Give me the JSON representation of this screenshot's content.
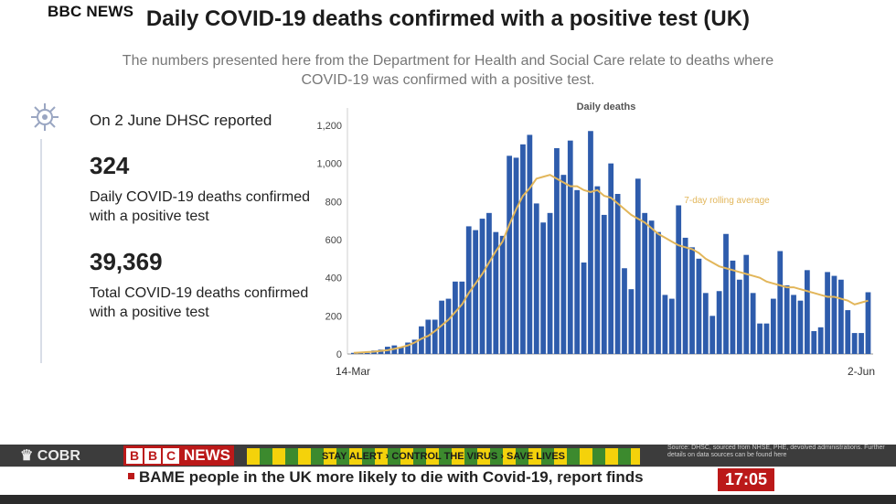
{
  "overlay": {
    "channel": "BBC NEWS"
  },
  "slide": {
    "title": "Daily COVID-19 deaths confirmed with a positive test (UK)",
    "subtitle": "The numbers presented here from the Department for Health and Social Care relate to deaths where COVID-19 was confirmed with a positive test.",
    "reported_label": "On 2 June DHSC reported",
    "daily_value": "324",
    "daily_label": "Daily COVID-19 deaths confirmed with a positive test",
    "total_value": "39,369",
    "total_label": "Total COVID-19 deaths confirmed with a positive test"
  },
  "chart_data": {
    "type": "bar",
    "title": "Daily deaths",
    "xlabel": "",
    "ylabel": "",
    "ylim": [
      0,
      1200
    ],
    "yticks": [
      0,
      200,
      400,
      600,
      800,
      "1,000",
      "1,200"
    ],
    "x_start_label": "14-Mar",
    "x_end_label": "2-Jun",
    "bar_color": "#2e5cac",
    "line_color": "#e2b65a",
    "line_label": "7-day rolling average",
    "values": [
      6,
      12,
      6,
      18,
      23,
      38,
      45,
      36,
      60,
      75,
      145,
      180,
      180,
      280,
      290,
      380,
      380,
      670,
      650,
      710,
      740,
      640,
      620,
      1040,
      1030,
      1100,
      1150,
      790,
      690,
      740,
      1080,
      940,
      1120,
      860,
      480,
      1170,
      880,
      730,
      1000,
      840,
      450,
      340,
      920,
      740,
      700,
      640,
      310,
      290,
      780,
      610,
      560,
      500,
      320,
      200,
      330,
      630,
      490,
      390,
      520,
      320,
      160,
      160,
      290,
      540,
      360,
      310,
      280,
      440,
      120,
      140,
      430,
      410,
      390,
      230,
      110,
      110,
      324
    ],
    "rolling_average": [
      6,
      8,
      10,
      12,
      16,
      20,
      27,
      35,
      45,
      60,
      80,
      95,
      120,
      150,
      180,
      220,
      260,
      320,
      370,
      420,
      480,
      540,
      590,
      680,
      760,
      830,
      870,
      920,
      930,
      940,
      920,
      900,
      880,
      880,
      860,
      850,
      860,
      830,
      820,
      790,
      760,
      730,
      710,
      690,
      660,
      630,
      610,
      590,
      570,
      560,
      550,
      530,
      500,
      480,
      460,
      450,
      440,
      430,
      420,
      410,
      400,
      380,
      370,
      360,
      350,
      350,
      340,
      330,
      320,
      310,
      300,
      300,
      290,
      280,
      260,
      270,
      280
    ]
  },
  "ticker": {
    "cobr": "COBR",
    "bbc_letters": [
      "B",
      "B",
      "C"
    ],
    "news_word": "NEWS",
    "alert": "STAY ALERT › CONTROL THE VIRUS › SAVE LIVES",
    "source": "Source: DHSC, sourced from NHSE, PHE, devolved administrations. Further details on data sources can be found here",
    "headline": "BAME people in the UK more likely to die with Covid-19, report finds",
    "time": "17:05"
  }
}
